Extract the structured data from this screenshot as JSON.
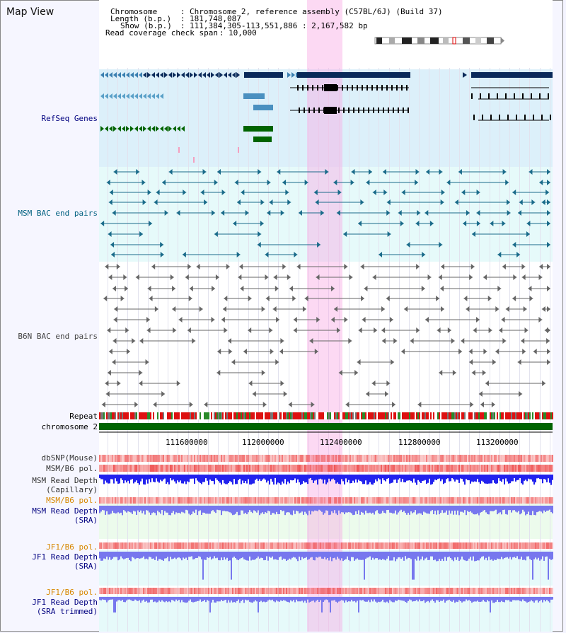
{
  "title": "Map View",
  "info": {
    "chromosome_label": "Chromosome",
    "chromosome_value": "Chromosome 2, reference assembly (C57BL/6J) (Build 37)",
    "length_label": "Length (b.p.)",
    "length_value": "181,748,087",
    "show_label": "Show (b.p.)",
    "show_value": "111,384,305-113,551,886 : 2,167,582 bp",
    "coverage_label": "Read coverage check span",
    "coverage_value": "10,000"
  },
  "tracks": {
    "refseq": "RefSeq Genes",
    "msm_bac": "MSM BAC end pairs",
    "b6n_bac": "B6N BAC end pairs",
    "repeat": "Repeat",
    "chromosome": "chromosome 2",
    "dbsnp": "dbSNP(Mouse)",
    "msm_pol": "MSM/B6 pol.",
    "msm_depth_cap_1": "MSM Read Depth",
    "msm_depth_cap_2": "(Capillary)",
    "msm_pol_2": "MSM/B6 pol.",
    "msm_depth_sra_1": "MSM Read Depth",
    "msm_depth_sra_2": "(SRA)",
    "jf1_pol_1": "JF1/B6 pol.",
    "jf1_depth_sra_1": "JF1 Read Depth",
    "jf1_depth_sra_2": "(SRA)",
    "jf1_pol_2": "JF1/B6 pol.",
    "jf1_depth_trim_1": "JF1 Read Depth",
    "jf1_depth_trim_2": "(SRA trimmed)"
  },
  "axis_ticks": [
    "111600000",
    "112000000",
    "112400000",
    "112800000",
    "113200000"
  ],
  "colors": {
    "refseq_dark": "#0a2a5a",
    "refseq_mid": "#3a7fb0",
    "refseq_green": "#006400",
    "msm_bac": "#1a6b8a",
    "b6n_bac": "#666666",
    "repeat_red": "#dd1111",
    "chromosome_green": "#006400",
    "depth_blue": "#2222ee",
    "depth_light": "#7777ee",
    "pol_red": "#ee4444",
    "label_navy": "#000080",
    "label_orange": "#d78700",
    "label_teal": "#006080"
  }
}
